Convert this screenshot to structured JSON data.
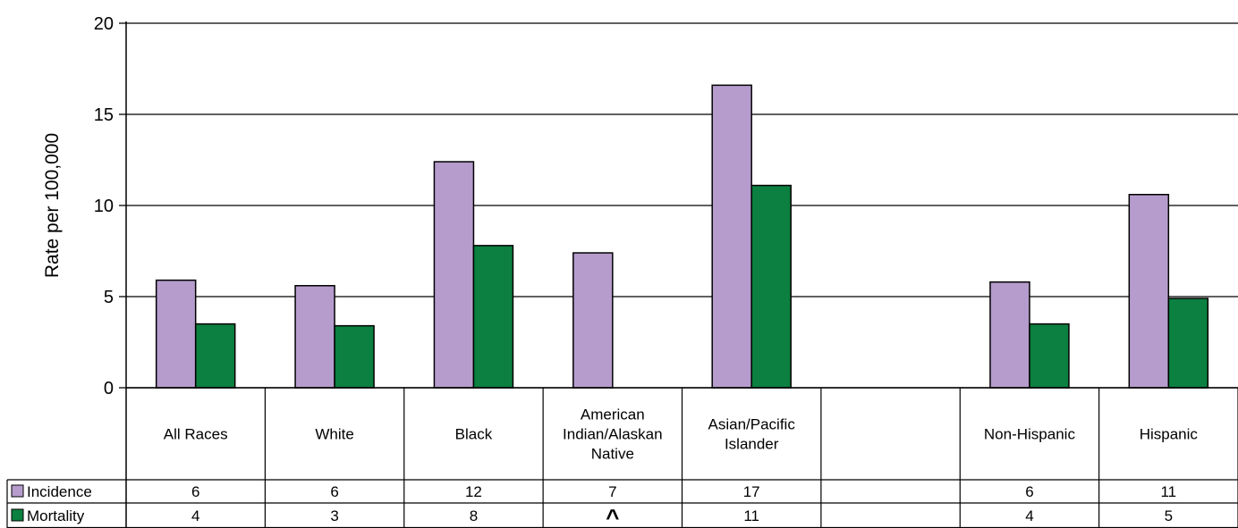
{
  "chart_data": {
    "type": "bar",
    "ylabel": "Rate per 100,000",
    "ylim": [
      0,
      20
    ],
    "yticks": [
      0,
      5,
      10,
      15,
      20
    ],
    "grid": true,
    "legend": "table-left",
    "categories": [
      "All Races",
      "White",
      "Black",
      "American Indian/Alaskan Native",
      "Asian/Pacific Islander",
      "",
      "Non-Hispanic",
      "Hispanic"
    ],
    "series": [
      {
        "name": "Incidence",
        "color": "#b69ccd",
        "values": [
          5.9,
          5.6,
          12.4,
          7.4,
          16.6,
          null,
          5.8,
          10.6
        ],
        "table_labels": [
          "6",
          "6",
          "12",
          "7",
          "17",
          "",
          "6",
          "11"
        ]
      },
      {
        "name": "Mortality",
        "color": "#0b8040",
        "values": [
          3.5,
          3.4,
          7.8,
          null,
          11.1,
          null,
          3.5,
          4.9
        ],
        "table_labels": [
          "4",
          "3",
          "8",
          "^",
          "11",
          "",
          "4",
          "5"
        ]
      }
    ]
  }
}
